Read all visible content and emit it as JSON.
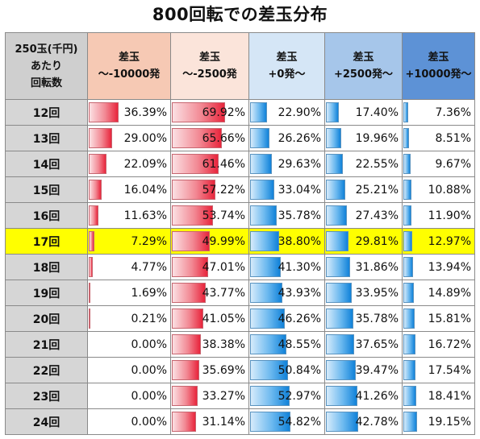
{
  "title": "800回転での差玉分布",
  "header": {
    "row_label": [
      "250玉(千円)",
      "あたり",
      "回転数"
    ],
    "columns": [
      [
        "差玉",
        "～-10000発"
      ],
      [
        "差玉",
        "～-2500発"
      ],
      [
        "差玉",
        "+0発～"
      ],
      [
        "差玉",
        "+2500発～"
      ],
      [
        "差玉",
        "+10000発～"
      ]
    ]
  },
  "colors": {
    "highlight_row": "#ffff00",
    "red_bar": "#e8253c",
    "blue_bar": "#1182d9"
  },
  "highlight_row_index": 5,
  "rows": [
    {
      "label": "12回",
      "cells": [
        "36.39%",
        "69.92%",
        "22.90%",
        "17.40%",
        "7.36%"
      ]
    },
    {
      "label": "13回",
      "cells": [
        "29.00%",
        "65.66%",
        "26.26%",
        "19.96%",
        "8.51%"
      ]
    },
    {
      "label": "14回",
      "cells": [
        "22.09%",
        "61.46%",
        "29.63%",
        "22.55%",
        "9.67%"
      ]
    },
    {
      "label": "15回",
      "cells": [
        "16.04%",
        "57.22%",
        "33.04%",
        "25.21%",
        "10.88%"
      ]
    },
    {
      "label": "16回",
      "cells": [
        "11.63%",
        "53.74%",
        "35.78%",
        "27.43%",
        "11.90%"
      ]
    },
    {
      "label": "17回",
      "cells": [
        "7.29%",
        "49.99%",
        "38.80%",
        "29.81%",
        "12.97%"
      ]
    },
    {
      "label": "18回",
      "cells": [
        "4.77%",
        "47.01%",
        "41.30%",
        "31.86%",
        "13.94%"
      ]
    },
    {
      "label": "19回",
      "cells": [
        "1.69%",
        "43.77%",
        "43.93%",
        "33.95%",
        "14.89%"
      ]
    },
    {
      "label": "20回",
      "cells": [
        "0.21%",
        "41.05%",
        "46.26%",
        "35.78%",
        "15.81%"
      ]
    },
    {
      "label": "21回",
      "cells": [
        "0.00%",
        "38.38%",
        "48.55%",
        "37.65%",
        "16.72%"
      ]
    },
    {
      "label": "22回",
      "cells": [
        "0.00%",
        "35.69%",
        "50.84%",
        "39.47%",
        "17.54%"
      ]
    },
    {
      "label": "23回",
      "cells": [
        "0.00%",
        "33.27%",
        "52.97%",
        "41.26%",
        "18.41%"
      ]
    },
    {
      "label": "24回",
      "cells": [
        "0.00%",
        "31.14%",
        "54.82%",
        "42.78%",
        "19.15%"
      ]
    }
  ]
}
